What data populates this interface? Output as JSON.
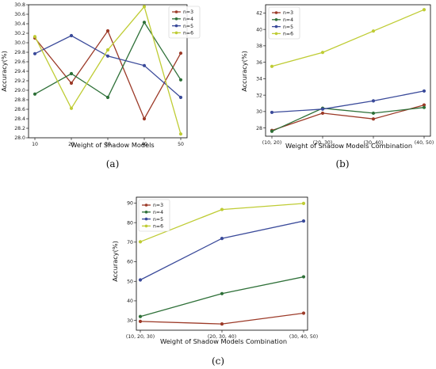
{
  "colors": {
    "n3": "#9c3a28",
    "n4": "#2e7038",
    "n5": "#3a4a9a",
    "n6": "#bfcc34"
  },
  "chart_data": [
    {
      "type": "line",
      "caption": "(a)",
      "xlabel": "Weight of Shadow Models",
      "ylabel": "Accuracy(%)",
      "categories": [
        "10",
        "20",
        "30",
        "40",
        "50"
      ],
      "ylim": [
        28.0,
        30.8
      ],
      "yticks": [
        "28.0",
        "28.2",
        "28.4",
        "28.6",
        "28.8",
        "29.0",
        "29.2",
        "29.4",
        "29.6",
        "29.8",
        "30.0",
        "30.2",
        "30.4",
        "30.6",
        "30.8"
      ],
      "legend_position": "top-right",
      "series": [
        {
          "name": "n=3",
          "color_key": "n3",
          "values": [
            30.1,
            29.15,
            30.25,
            28.4,
            29.78
          ]
        },
        {
          "name": "n=4",
          "color_key": "n4",
          "values": [
            28.92,
            29.35,
            28.85,
            30.43,
            29.22
          ]
        },
        {
          "name": "n=5",
          "color_key": "n5",
          "values": [
            29.77,
            30.15,
            29.72,
            29.52,
            28.85
          ]
        },
        {
          "name": "n=6",
          "color_key": "n6",
          "values": [
            30.13,
            28.62,
            29.85,
            30.76,
            28.08
          ]
        }
      ]
    },
    {
      "type": "line",
      "caption": "(b)",
      "xlabel": "Weight of Shadow Models Combination",
      "ylabel": "Accuracy(%)",
      "categories": [
        "(10, 20)",
        "(20, 30)",
        "(30, 40)",
        "(40, 50)"
      ],
      "ylim": [
        27,
        43
      ],
      "yticks": [
        "28",
        "30",
        "32",
        "34",
        "36",
        "38",
        "40",
        "42"
      ],
      "legend_position": "top-left",
      "series": [
        {
          "name": "n=3",
          "color_key": "n3",
          "values": [
            27.7,
            29.8,
            29.1,
            30.8
          ]
        },
        {
          "name": "n=4",
          "color_key": "n4",
          "values": [
            27.6,
            30.4,
            29.8,
            30.5
          ]
        },
        {
          "name": "n=5",
          "color_key": "n5",
          "values": [
            29.9,
            30.3,
            31.3,
            32.5
          ]
        },
        {
          "name": "n=6",
          "color_key": "n6",
          "values": [
            35.5,
            37.2,
            39.8,
            42.4
          ]
        }
      ]
    },
    {
      "type": "line",
      "caption": "(c)",
      "xlabel": "Weight of Shadow Models Combination",
      "ylabel": "Accuracy(%)",
      "categories": [
        "(10, 20, 30)",
        "(20, 30, 40)",
        "(30, 40, 50)"
      ],
      "ylim": [
        25,
        93
      ],
      "yticks": [
        "30",
        "40",
        "50",
        "60",
        "70",
        "80",
        "90"
      ],
      "legend_position": "top-left",
      "series": [
        {
          "name": "n=3",
          "color_key": "n3",
          "values": [
            29.5,
            28.2,
            33.7
          ]
        },
        {
          "name": "n=4",
          "color_key": "n4",
          "values": [
            32.0,
            43.7,
            52.3
          ]
        },
        {
          "name": "n=5",
          "color_key": "n5",
          "values": [
            50.7,
            71.9,
            80.8
          ]
        },
        {
          "name": "n=6",
          "color_key": "n6",
          "values": [
            70.2,
            86.7,
            89.8
          ]
        }
      ]
    }
  ]
}
